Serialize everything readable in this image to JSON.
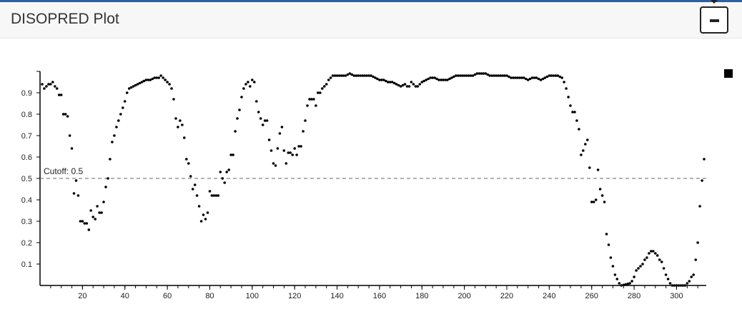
{
  "panel": {
    "title": "DISOPRED Plot"
  },
  "chart_data": {
    "type": "scatter",
    "title": "",
    "xlabel": "",
    "ylabel": "",
    "xlim": [
      0,
      314
    ],
    "ylim": [
      0,
      1
    ],
    "x_ticks": [
      20,
      40,
      60,
      80,
      100,
      120,
      140,
      160,
      180,
      200,
      220,
      240,
      260,
      280,
      300
    ],
    "y_ticks": [
      0.1,
      0.2,
      0.3,
      0.4,
      0.5,
      0.6,
      0.7,
      0.8,
      0.9
    ],
    "grid": false,
    "legend": "top-right",
    "cutoff": {
      "value": 0.5,
      "label": "Cutoff: 0.5"
    },
    "point_color": "#000000",
    "cutoff_color": "#666666",
    "anchors": [
      [
        1,
        0.94
      ],
      [
        2,
        0.92
      ],
      [
        3,
        0.93
      ],
      [
        4,
        0.94
      ],
      [
        5,
        0.94
      ],
      [
        6,
        0.95
      ],
      [
        7,
        0.93
      ],
      [
        8,
        0.92
      ],
      [
        9,
        0.89
      ],
      [
        10,
        0.89
      ],
      [
        11,
        0.8
      ],
      [
        12,
        0.8
      ],
      [
        13,
        0.79
      ],
      [
        14,
        0.7
      ],
      [
        15,
        0.64
      ],
      [
        16,
        0.43
      ],
      [
        17,
        0.49
      ],
      [
        18,
        0.42
      ],
      [
        19,
        0.3
      ],
      [
        20,
        0.3
      ],
      [
        21,
        0.29
      ],
      [
        22,
        0.29
      ],
      [
        23,
        0.26
      ],
      [
        24,
        0.35
      ],
      [
        25,
        0.32
      ],
      [
        26,
        0.31
      ],
      [
        27,
        0.37
      ],
      [
        28,
        0.34
      ],
      [
        29,
        0.34
      ],
      [
        30,
        0.39
      ],
      [
        31,
        0.46
      ],
      [
        32,
        0.5
      ],
      [
        33,
        0.59
      ],
      [
        34,
        0.67
      ],
      [
        35,
        0.7
      ],
      [
        36,
        0.74
      ],
      [
        38,
        0.8
      ],
      [
        40,
        0.86
      ],
      [
        41,
        0.9
      ],
      [
        42,
        0.92
      ],
      [
        44,
        0.93
      ],
      [
        46,
        0.94
      ],
      [
        48,
        0.95
      ],
      [
        50,
        0.96
      ],
      [
        52,
        0.96
      ],
      [
        54,
        0.97
      ],
      [
        56,
        0.97
      ],
      [
        57,
        0.98
      ],
      [
        58,
        0.97
      ],
      [
        59,
        0.96
      ],
      [
        60,
        0.95
      ],
      [
        61,
        0.94
      ],
      [
        62,
        0.92
      ],
      [
        63,
        0.87
      ],
      [
        64,
        0.78
      ],
      [
        65,
        0.74
      ],
      [
        66,
        0.77
      ],
      [
        67,
        0.75
      ],
      [
        68,
        0.69
      ],
      [
        69,
        0.59
      ],
      [
        70,
        0.57
      ],
      [
        71,
        0.51
      ],
      [
        72,
        0.45
      ],
      [
        73,
        0.47
      ],
      [
        74,
        0.42
      ],
      [
        75,
        0.37
      ],
      [
        76,
        0.3
      ],
      [
        77,
        0.33
      ],
      [
        78,
        0.31
      ],
      [
        79,
        0.34
      ],
      [
        80,
        0.44
      ],
      [
        81,
        0.42
      ],
      [
        82,
        0.42
      ],
      [
        84,
        0.42
      ],
      [
        85,
        0.53
      ],
      [
        86,
        0.5
      ],
      [
        87,
        0.48
      ],
      [
        88,
        0.53
      ],
      [
        89,
        0.54
      ],
      [
        90,
        0.61
      ],
      [
        91,
        0.61
      ],
      [
        92,
        0.72
      ],
      [
        93,
        0.78
      ],
      [
        94,
        0.82
      ],
      [
        95,
        0.88
      ],
      [
        96,
        0.92
      ],
      [
        97,
        0.94
      ],
      [
        98,
        0.95
      ],
      [
        99,
        0.93
      ],
      [
        100,
        0.96
      ],
      [
        101,
        0.95
      ],
      [
        102,
        0.86
      ],
      [
        103,
        0.81
      ],
      [
        104,
        0.78
      ],
      [
        105,
        0.75
      ],
      [
        106,
        0.77
      ],
      [
        107,
        0.77
      ],
      [
        108,
        0.68
      ],
      [
        109,
        0.63
      ],
      [
        110,
        0.57
      ],
      [
        111,
        0.56
      ],
      [
        112,
        0.64
      ],
      [
        113,
        0.71
      ],
      [
        114,
        0.74
      ],
      [
        115,
        0.63
      ],
      [
        116,
        0.57
      ],
      [
        117,
        0.62
      ],
      [
        118,
        0.62
      ],
      [
        119,
        0.61
      ],
      [
        120,
        0.64
      ],
      [
        121,
        0.61
      ],
      [
        122,
        0.65
      ],
      [
        123,
        0.65
      ],
      [
        124,
        0.72
      ],
      [
        125,
        0.77
      ],
      [
        126,
        0.84
      ],
      [
        127,
        0.87
      ],
      [
        128,
        0.87
      ],
      [
        129,
        0.87
      ],
      [
        130,
        0.84
      ],
      [
        131,
        0.9
      ],
      [
        132,
        0.9
      ],
      [
        133,
        0.92
      ],
      [
        134,
        0.93
      ],
      [
        135,
        0.94
      ],
      [
        136,
        0.96
      ],
      [
        137,
        0.97
      ],
      [
        138,
        0.98
      ],
      [
        140,
        0.98
      ],
      [
        142,
        0.98
      ],
      [
        144,
        0.98
      ],
      [
        146,
        0.99
      ],
      [
        148,
        0.98
      ],
      [
        152,
        0.98
      ],
      [
        156,
        0.98
      ],
      [
        158,
        0.97
      ],
      [
        160,
        0.96
      ],
      [
        162,
        0.96
      ],
      [
        164,
        0.95
      ],
      [
        166,
        0.95
      ],
      [
        168,
        0.94
      ],
      [
        170,
        0.93
      ],
      [
        172,
        0.94
      ],
      [
        173,
        0.93
      ],
      [
        174,
        0.93
      ],
      [
        175,
        0.95
      ],
      [
        176,
        0.94
      ],
      [
        177,
        0.93
      ],
      [
        178,
        0.93
      ],
      [
        179,
        0.94
      ],
      [
        180,
        0.95
      ],
      [
        182,
        0.96
      ],
      [
        184,
        0.97
      ],
      [
        186,
        0.97
      ],
      [
        188,
        0.96
      ],
      [
        190,
        0.96
      ],
      [
        192,
        0.96
      ],
      [
        194,
        0.97
      ],
      [
        196,
        0.98
      ],
      [
        198,
        0.98
      ],
      [
        200,
        0.98
      ],
      [
        202,
        0.98
      ],
      [
        204,
        0.98
      ],
      [
        206,
        0.99
      ],
      [
        208,
        0.99
      ],
      [
        210,
        0.99
      ],
      [
        212,
        0.98
      ],
      [
        214,
        0.98
      ],
      [
        216,
        0.98
      ],
      [
        218,
        0.98
      ],
      [
        220,
        0.98
      ],
      [
        222,
        0.97
      ],
      [
        224,
        0.97
      ],
      [
        226,
        0.97
      ],
      [
        228,
        0.97
      ],
      [
        230,
        0.96
      ],
      [
        232,
        0.97
      ],
      [
        234,
        0.97
      ],
      [
        236,
        0.96
      ],
      [
        238,
        0.97
      ],
      [
        240,
        0.98
      ],
      [
        242,
        0.98
      ],
      [
        244,
        0.98
      ],
      [
        246,
        0.97
      ],
      [
        247,
        0.95
      ],
      [
        248,
        0.92
      ],
      [
        249,
        0.88
      ],
      [
        250,
        0.84
      ],
      [
        251,
        0.81
      ],
      [
        252,
        0.81
      ],
      [
        253,
        0.77
      ],
      [
        254,
        0.73
      ],
      [
        255,
        0.61
      ],
      [
        256,
        0.63
      ],
      [
        257,
        0.66
      ],
      [
        258,
        0.68
      ],
      [
        259,
        0.55
      ],
      [
        260,
        0.39
      ],
      [
        261,
        0.39
      ],
      [
        262,
        0.4
      ],
      [
        263,
        0.54
      ],
      [
        264,
        0.45
      ],
      [
        265,
        0.42
      ],
      [
        266,
        0.39
      ],
      [
        267,
        0.24
      ],
      [
        268,
        0.19
      ],
      [
        269,
        0.13
      ],
      [
        270,
        0.09
      ],
      [
        271,
        0.05
      ],
      [
        272,
        0.03
      ],
      [
        273,
        0.01
      ],
      [
        274,
        0.0
      ],
      [
        278,
        0.01
      ],
      [
        279,
        0.02
      ],
      [
        280,
        0.04
      ],
      [
        281,
        0.07
      ],
      [
        282,
        0.08
      ],
      [
        284,
        0.1
      ],
      [
        285,
        0.12
      ],
      [
        286,
        0.13
      ],
      [
        287,
        0.15
      ],
      [
        288,
        0.16
      ],
      [
        289,
        0.16
      ],
      [
        290,
        0.15
      ],
      [
        291,
        0.14
      ],
      [
        292,
        0.12
      ],
      [
        293,
        0.11
      ],
      [
        294,
        0.08
      ],
      [
        295,
        0.05
      ],
      [
        296,
        0.03
      ],
      [
        297,
        0.01
      ],
      [
        298,
        0.0
      ],
      [
        304,
        0.0
      ],
      [
        306,
        0.02
      ],
      [
        307,
        0.04
      ],
      [
        308,
        0.05
      ],
      [
        309,
        0.12
      ],
      [
        310,
        0.2
      ],
      [
        311,
        0.37
      ],
      [
        312,
        0.49
      ],
      [
        313,
        0.59
      ]
    ]
  }
}
